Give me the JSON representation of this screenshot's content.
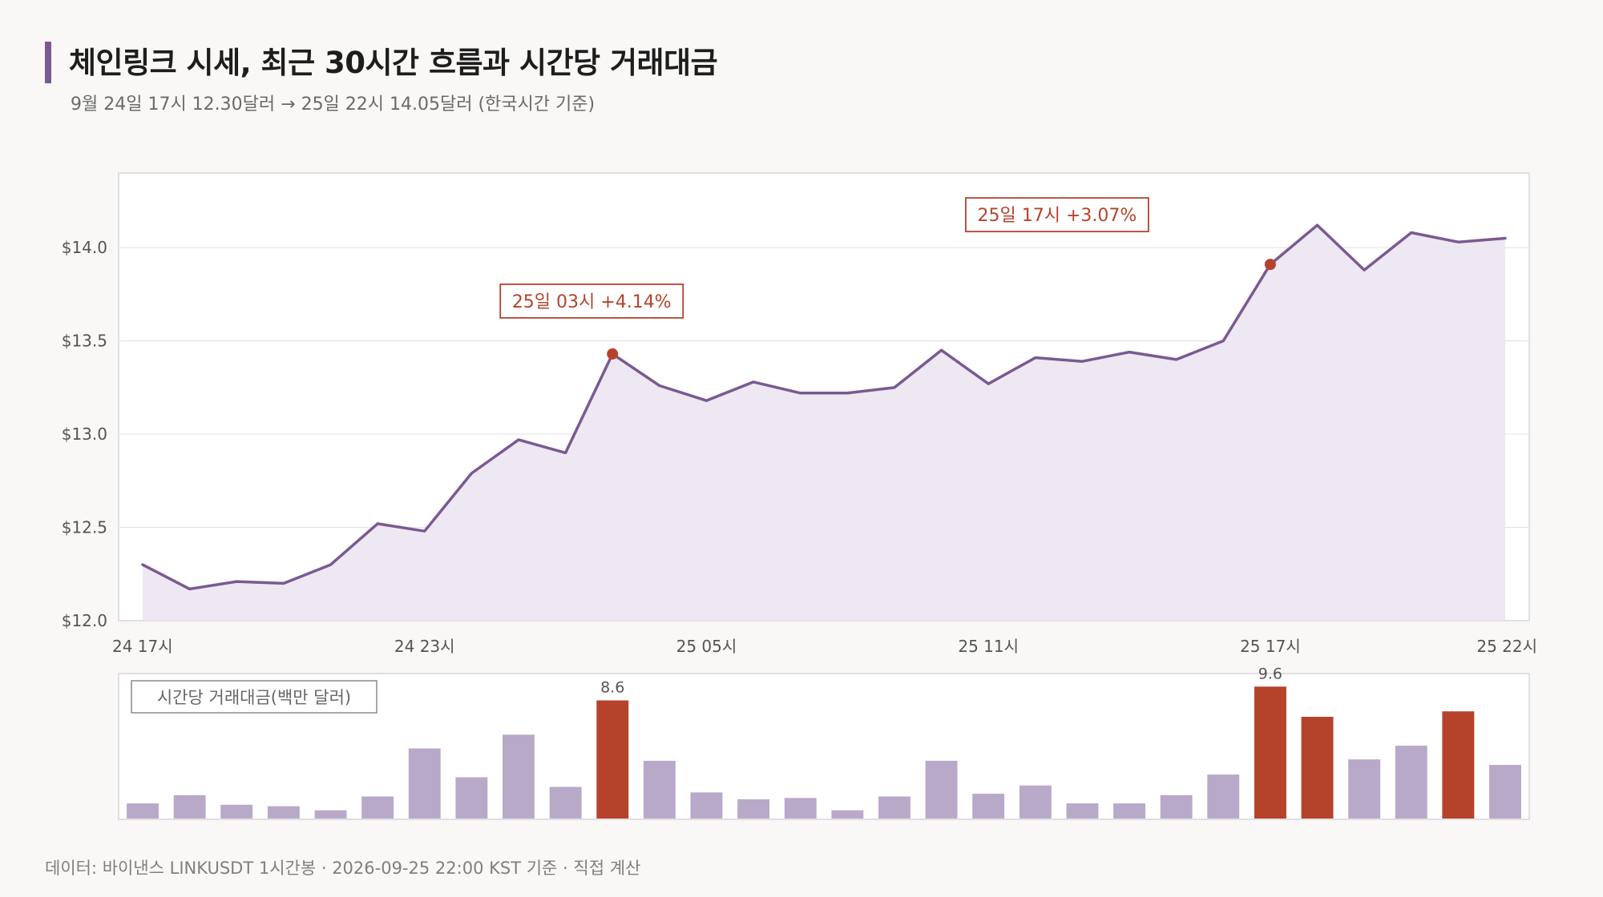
{
  "header": {
    "title": "체인링크 시세, 최근 30시간 흐름과 시간당 거래대금",
    "subtitle": "9월 24일 17시 12.30달러 → 25일 22시 14.05달러 (한국시간 기준)"
  },
  "footer": {
    "text": "데이터: 바이낸스 LINKUSDT 1시간봉 · 2026-09-25 22:00 KST 기준 · 직접 계산"
  },
  "colors": {
    "line": "#7a5a92",
    "area": "#ebe6f1",
    "bar": "#b9a9c8",
    "bar_highlight": "#b5432c",
    "annotation": "#b5432c",
    "grid": "#e6e3e8",
    "frame": "#d9d6dc"
  },
  "chart_data": [
    {
      "type": "line",
      "title": "",
      "xlabel": "",
      "ylabel": "",
      "ylim": [
        12.0,
        14.4
      ],
      "yticks": [
        12.0,
        12.5,
        13.0,
        13.5,
        14.0
      ],
      "ytick_labels": [
        "$12.0",
        "$12.5",
        "$13.0",
        "$13.5",
        "$14.0"
      ],
      "xtick_indices": [
        0,
        6,
        12,
        18,
        24,
        29
      ],
      "xtick_labels": [
        "24 17시",
        "24 23시",
        "25 05시",
        "25 11시",
        "25 17시",
        "25 22시"
      ],
      "grid": true,
      "area_fill": true,
      "x": [
        "24 17시",
        "24 18시",
        "24 19시",
        "24 20시",
        "24 21시",
        "24 22시",
        "24 23시",
        "25 00시",
        "25 01시",
        "25 02시",
        "25 03시",
        "25 04시",
        "25 05시",
        "25 06시",
        "25 07시",
        "25 08시",
        "25 09시",
        "25 10시",
        "25 11시",
        "25 12시",
        "25 13시",
        "25 14시",
        "25 15시",
        "25 16시",
        "25 17시",
        "25 18시",
        "25 19시",
        "25 20시",
        "25 21시",
        "25 22시"
      ],
      "series": [
        {
          "values": [
            12.3,
            12.17,
            12.21,
            12.2,
            12.3,
            12.52,
            12.48,
            12.79,
            12.97,
            12.9,
            13.43,
            13.26,
            13.18,
            13.28,
            13.22,
            13.22,
            13.25,
            13.45,
            13.27,
            13.41,
            13.39,
            13.44,
            13.4,
            13.5,
            13.91,
            14.12,
            13.88,
            14.08,
            14.03,
            14.05
          ]
        }
      ],
      "annotations": [
        {
          "index": 10,
          "label": "25일 03시  +4.14%"
        },
        {
          "index": 24,
          "label": "25일 17시  +3.07%"
        }
      ]
    },
    {
      "type": "bar",
      "title": "시간당 거래대금(백만 달러)",
      "ylim": [
        0,
        10.2
      ],
      "categories": [
        "24 17시",
        "24 18시",
        "24 19시",
        "24 20시",
        "24 21시",
        "24 22시",
        "24 23시",
        "25 00시",
        "25 01시",
        "25 02시",
        "25 03시",
        "25 04시",
        "25 05시",
        "25 06시",
        "25 07시",
        "25 08시",
        "25 09시",
        "25 10시",
        "25 11시",
        "25 12시",
        "25 13시",
        "25 14시",
        "25 15시",
        "25 16시",
        "25 17시",
        "25 18시",
        "25 19시",
        "25 20시",
        "25 21시",
        "25 22시"
      ],
      "values": [
        1.1,
        1.7,
        1.0,
        0.9,
        0.6,
        1.6,
        5.1,
        3.0,
        6.1,
        2.3,
        8.6,
        4.2,
        1.9,
        1.4,
        1.5,
        0.6,
        1.6,
        4.2,
        1.8,
        2.4,
        1.1,
        1.1,
        1.7,
        3.2,
        9.6,
        7.4,
        4.3,
        5.3,
        7.8,
        3.9
      ],
      "highlight": [
        10,
        24,
        25,
        28
      ],
      "value_labels": {
        "10": "8.6",
        "24": "9.6"
      }
    }
  ]
}
